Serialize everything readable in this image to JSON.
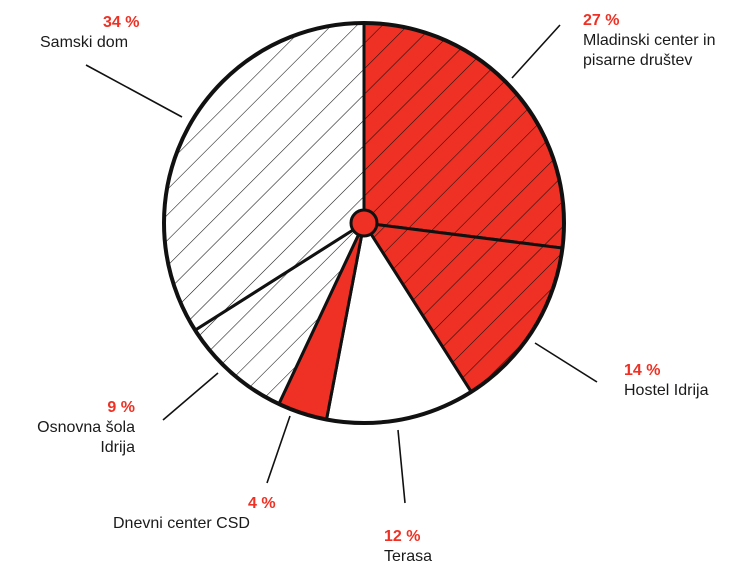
{
  "chart_data": {
    "type": "pie",
    "title": "",
    "colors": {
      "red": "#ee3124",
      "white": "#ffffff",
      "stroke": "#111111"
    },
    "slices": [
      {
        "key": "mladinski",
        "pct_label": "27 %",
        "label_lines": [
          "Mladinski center in",
          "pisarne društev"
        ],
        "value": 27,
        "fill": "red",
        "hatched": true
      },
      {
        "key": "hostel",
        "pct_label": "14 %",
        "label_lines": [
          "Hostel Idrija"
        ],
        "value": 14,
        "fill": "red",
        "hatched": true
      },
      {
        "key": "terasa",
        "pct_label": "12 %",
        "label_lines": [
          "Terasa"
        ],
        "value": 12,
        "fill": "white",
        "hatched": false
      },
      {
        "key": "dnevni",
        "pct_label": "4 %",
        "label_lines": [
          "Dnevni center CSD"
        ],
        "value": 4,
        "fill": "red",
        "hatched": false
      },
      {
        "key": "osnovna",
        "pct_label": "9 %",
        "label_lines": [
          "Osnovna šola",
          "Idrija"
        ],
        "value": 9,
        "fill": "white",
        "hatched": true
      },
      {
        "key": "samski",
        "pct_label": "34 %",
        "label_lines": [
          "Samski dom"
        ],
        "value": 34,
        "fill": "white",
        "hatched": true
      }
    ]
  }
}
